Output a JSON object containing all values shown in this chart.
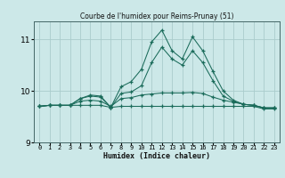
{
  "xlabel": "Humidex (Indice chaleur)",
  "background_color": "#cce8e8",
  "grid_color": "#aacccc",
  "line_color": "#1a6b5a",
  "x": [
    0,
    1,
    2,
    3,
    4,
    5,
    6,
    7,
    8,
    9,
    10,
    11,
    12,
    13,
    14,
    15,
    16,
    17,
    18,
    19,
    20,
    21,
    22,
    23
  ],
  "line1": [
    9.7,
    9.72,
    9.72,
    9.72,
    9.72,
    9.72,
    9.72,
    9.68,
    9.7,
    9.7,
    9.7,
    9.7,
    9.7,
    9.7,
    9.7,
    9.7,
    9.7,
    9.7,
    9.7,
    9.7,
    9.7,
    9.7,
    9.65,
    9.65
  ],
  "line2": [
    9.7,
    9.72,
    9.72,
    9.72,
    9.8,
    9.82,
    9.8,
    9.7,
    9.85,
    9.87,
    9.92,
    9.94,
    9.96,
    9.96,
    9.96,
    9.97,
    9.95,
    9.88,
    9.82,
    9.78,
    9.74,
    9.72,
    9.67,
    9.67
  ],
  "line3": [
    9.7,
    9.72,
    9.72,
    9.72,
    9.85,
    9.9,
    9.88,
    9.68,
    9.95,
    9.98,
    10.1,
    10.55,
    10.85,
    10.62,
    10.5,
    10.78,
    10.55,
    10.2,
    9.9,
    9.8,
    9.74,
    9.72,
    9.67,
    9.67
  ],
  "line4": [
    9.7,
    9.72,
    9.72,
    9.72,
    9.85,
    9.92,
    9.9,
    9.68,
    10.08,
    10.18,
    10.42,
    10.95,
    11.18,
    10.78,
    10.62,
    11.05,
    10.78,
    10.38,
    10.0,
    9.82,
    9.74,
    9.72,
    9.67,
    9.67
  ],
  "ylim": [
    9.0,
    11.35
  ],
  "yticks": [
    9,
    10,
    11
  ],
  "xlim": [
    -0.5,
    23.5
  ],
  "xtick_labels": [
    "0",
    "1",
    "2",
    "3",
    "4",
    "5",
    "6",
    "7",
    "8",
    "9",
    "10",
    "11",
    "12",
    "13",
    "14",
    "15",
    "16",
    "17",
    "18",
    "19",
    "20",
    "21",
    "22",
    "23"
  ],
  "title": "Courbe de l'humidex pour Reims-Prunay (51)"
}
